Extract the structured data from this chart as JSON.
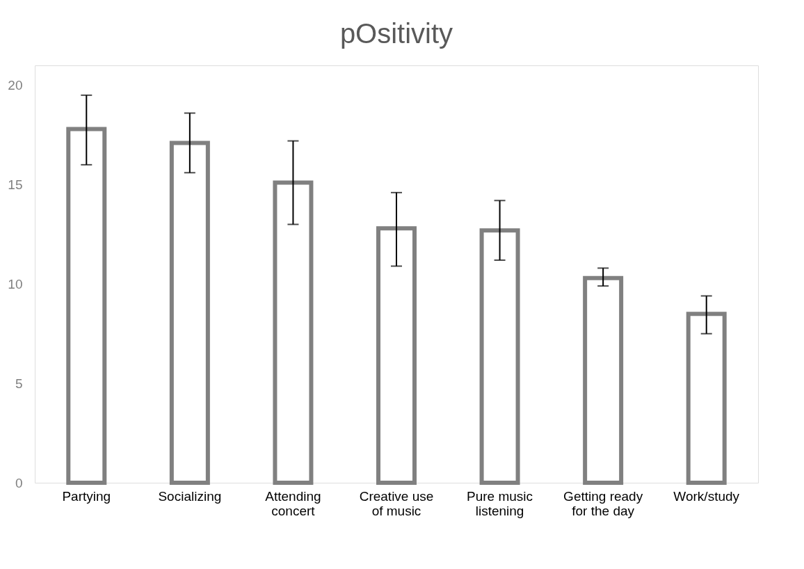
{
  "chart_data": {
    "type": "bar",
    "title": "pOsitivity",
    "categories": [
      "Partying",
      "Socializing",
      "Attending\nconcert",
      "Creative use\nof music",
      "Pure music\nlistening",
      "Getting ready\nfor the day",
      "Work/study"
    ],
    "values": [
      17.8,
      17.1,
      15.1,
      12.8,
      12.7,
      10.3,
      8.5
    ],
    "errors": [
      [
        16.0,
        19.5
      ],
      [
        15.6,
        18.6
      ],
      [
        13.0,
        17.2
      ],
      [
        10.9,
        14.6
      ],
      [
        11.2,
        14.2
      ],
      [
        9.9,
        10.8
      ],
      [
        7.5,
        9.4
      ]
    ],
    "color": "#808080",
    "ylim": [
      0,
      21
    ],
    "yticks": [
      0,
      5,
      10,
      15,
      20
    ],
    "grid": false
  }
}
